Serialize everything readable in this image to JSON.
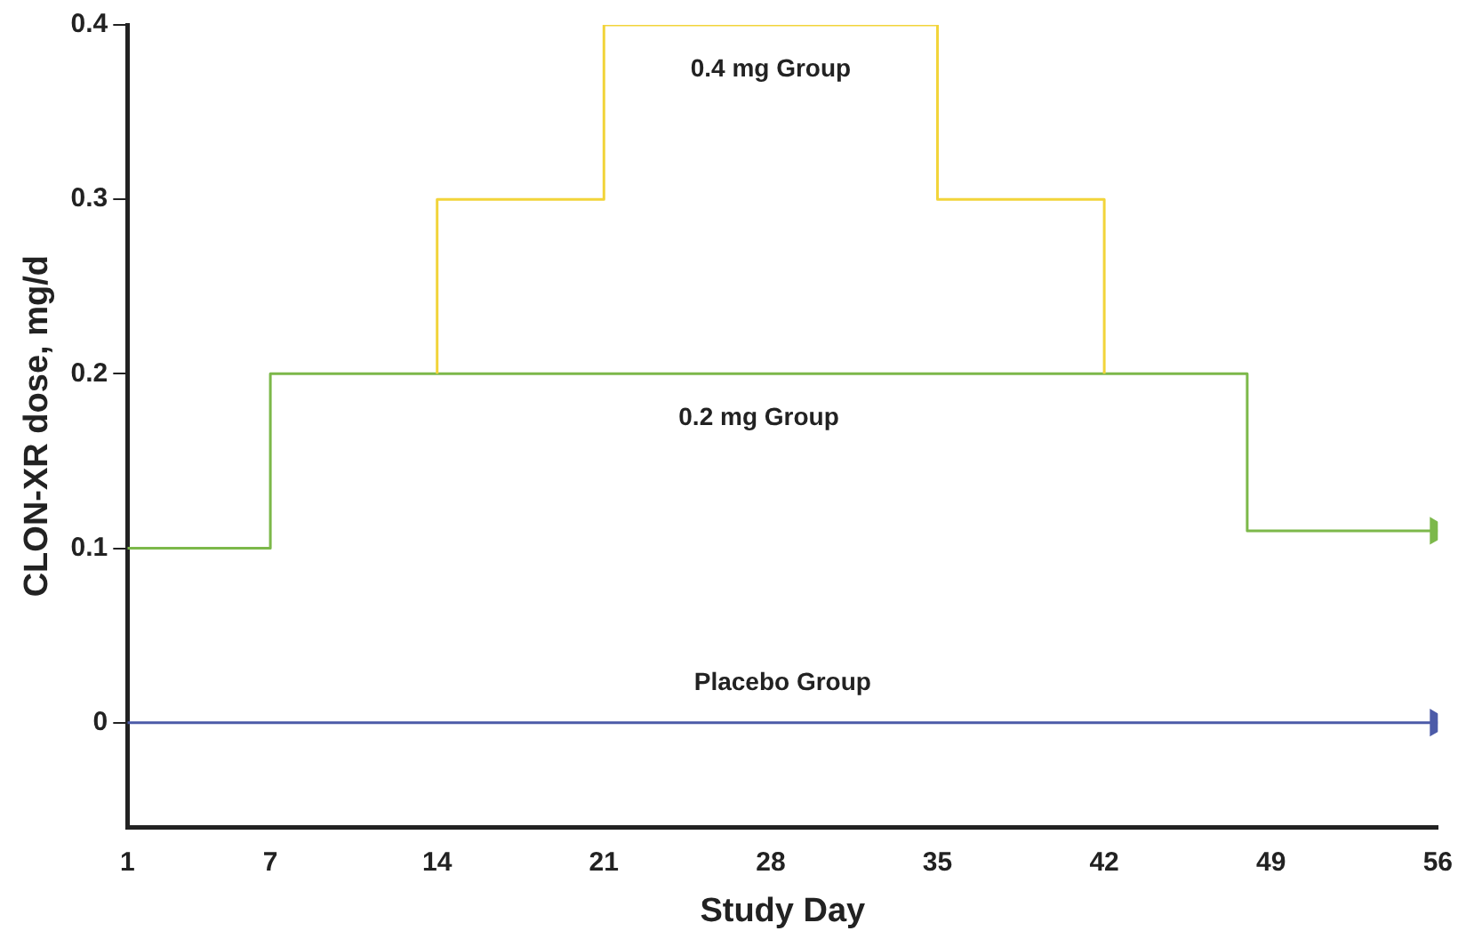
{
  "chart_data": {
    "type": "step",
    "xlabel": "Study Day",
    "ylabel": "CLON-XR dose, mg/d",
    "xlim": [
      1,
      56
    ],
    "xticks": [
      1,
      7,
      14,
      21,
      28,
      35,
      42,
      49,
      56
    ],
    "ylim": [
      -0.06,
      0.4
    ],
    "yticks": [
      0,
      0.1,
      0.2,
      0.3,
      0.4
    ],
    "grid": false,
    "legend": false,
    "series": [
      {
        "name": "0.2 mg Group",
        "color": "#7cb84a",
        "x": [
          1,
          7,
          48,
          56
        ],
        "values": [
          0.1,
          0.2,
          0.11,
          0.11
        ]
      },
      {
        "name": "0.4 mg Group",
        "color": "#f2d43a",
        "x": [
          14,
          14,
          21,
          35,
          42
        ],
        "values": [
          0.2,
          0.3,
          0.4,
          0.3,
          0.2
        ]
      },
      {
        "name": "Placebo Group",
        "color": "#4c5ba8",
        "x": [
          1,
          56
        ],
        "values": [
          0,
          0
        ]
      }
    ]
  }
}
